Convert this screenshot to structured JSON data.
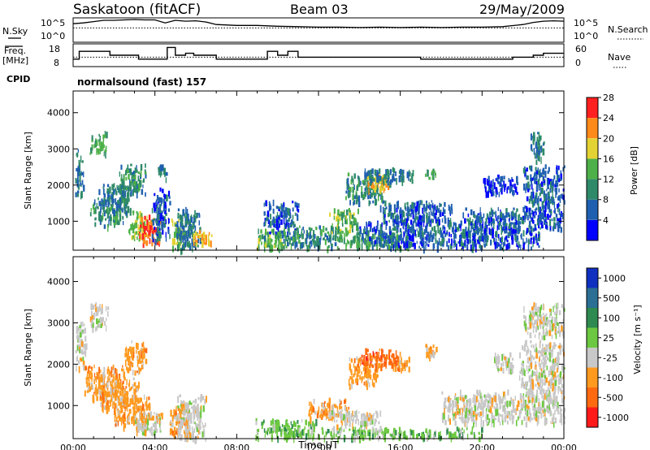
{
  "header": {
    "station": "Saskatoon (fitACF)",
    "beam": "Beam 03",
    "date": "29/May/2009",
    "program": "normalsound (fast) 157"
  },
  "left_labels": {
    "nsky": "N.Sky",
    "freq_line1": "Freq.",
    "freq_line2": "[MHz]",
    "cpid": "CPID"
  },
  "right_labels": {
    "nsearch": "N.Search",
    "nave": "Nave"
  },
  "panel_ticks": {
    "nsky_left": [
      "10^5",
      "10^0"
    ],
    "nsky_right": [
      "10^5",
      "10^0"
    ],
    "freq_left": [
      "18",
      "8"
    ],
    "freq_right": [
      "60",
      "0"
    ]
  },
  "chart_data": [
    {
      "type": "line",
      "name": "noise-panel",
      "x": [
        0,
        0.5,
        1,
        1.5,
        2,
        2.5,
        3,
        3.5,
        4,
        4.5,
        5,
        5.5,
        6,
        6.5,
        7,
        8,
        9,
        10,
        11,
        12,
        13,
        14,
        15,
        16,
        17,
        18,
        19,
        20,
        21,
        22,
        22.5,
        23,
        23.5,
        24
      ],
      "series": [
        {
          "name": "N.Sky",
          "values": [
            4,
            4.2,
            4.5,
            4.8,
            4.8,
            4.9,
            5,
            4.9,
            4.9,
            4.2,
            4.8,
            4.6,
            4.7,
            4.4,
            3.8,
            3.6,
            3.6,
            3.4,
            3.3,
            3.2,
            3.2,
            3.1,
            3.2,
            3.1,
            3.2,
            3.1,
            3.2,
            3.2,
            3.3,
            3.8,
            4.3,
            4.6,
            4.7,
            4.6
          ]
        },
        {
          "name": "N.Search",
          "values": [
            3,
            3,
            3,
            3,
            3,
            3,
            3,
            3,
            3,
            3,
            3,
            3,
            3,
            3,
            3,
            3,
            3,
            3,
            3,
            3,
            3,
            3,
            3,
            3,
            3,
            3,
            3,
            3,
            3,
            3,
            3,
            3,
            3,
            3
          ]
        }
      ],
      "ylim": [
        0,
        5
      ]
    },
    {
      "type": "line",
      "name": "frequency-panel",
      "x": [
        0,
        0.3,
        1,
        1.8,
        2.5,
        3.2,
        4.5,
        4.6,
        5,
        5.5,
        5.9,
        6.3,
        7,
        8,
        9,
        9.5,
        10,
        10.5,
        11,
        12,
        13,
        14,
        15,
        16,
        17,
        17.5,
        18,
        19,
        20,
        21,
        21.5,
        22,
        22.5,
        23,
        24
      ],
      "series": [
        {
          "name": "Freq.",
          "values": [
            11,
            15,
            15,
            13,
            13,
            11,
            11,
            17,
            13,
            14,
            13,
            13,
            11,
            11,
            11,
            15,
            13,
            15,
            12,
            12,
            12,
            12,
            12,
            12,
            11,
            11,
            11,
            11,
            11,
            11,
            12,
            12,
            13,
            14,
            14
          ]
        },
        {
          "name": "Nave",
          "values": [
            24,
            24,
            24,
            24,
            24,
            24,
            24,
            24,
            24,
            24,
            24,
            24,
            24,
            24,
            24,
            24,
            24,
            24,
            24,
            24,
            24,
            24,
            24,
            24,
            24,
            24,
            24,
            24,
            24,
            24,
            24,
            24,
            24,
            24,
            24
          ]
        }
      ],
      "ylim": [
        8,
        18
      ]
    },
    {
      "type": "heatmap",
      "name": "power-panel",
      "xlabel": "",
      "ylabel": "Slant Range [km]",
      "colorbar_label": "Power [dB]",
      "colorbar_ticks": [
        4,
        8,
        12,
        16,
        20,
        24,
        28
      ],
      "colorbar_colors": [
        "#0000ff",
        "#1f5fb0",
        "#2e8a68",
        "#4db048",
        "#e3d233",
        "#ff8a1a",
        "#ff2020"
      ],
      "x_ticks": [
        "00:00",
        "04:00",
        "08:00",
        "12:00",
        "16:00",
        "20:00",
        "00:00"
      ],
      "y_ticks": [
        1000,
        2000,
        3000,
        4000
      ],
      "ylim": [
        200,
        4600
      ],
      "xlim": [
        0,
        24
      ],
      "patches": [
        {
          "t0": 0.1,
          "t1": 0.5,
          "r0": 1700,
          "r1": 3000,
          "v": 10
        },
        {
          "t0": 0.8,
          "t1": 1.6,
          "r0": 2900,
          "r1": 3500,
          "v": 14
        },
        {
          "t0": 0.8,
          "t1": 2.5,
          "r0": 900,
          "r1": 1700,
          "v": 12
        },
        {
          "t0": 1.2,
          "t1": 2.8,
          "r0": 1200,
          "r1": 2100,
          "v": 10
        },
        {
          "t0": 2.2,
          "t1": 3.6,
          "r0": 1800,
          "r1": 2600,
          "v": 12
        },
        {
          "t0": 2.7,
          "t1": 3.7,
          "r0": 500,
          "r1": 1300,
          "v": 18
        },
        {
          "t0": 3.2,
          "t1": 4.3,
          "r0": 400,
          "r1": 1200,
          "v": 26
        },
        {
          "t0": 3.8,
          "t1": 4.7,
          "r0": 500,
          "r1": 2000,
          "v": 8
        },
        {
          "t0": 4.0,
          "t1": 4.6,
          "r0": 2200,
          "r1": 2600,
          "v": 10
        },
        {
          "t0": 4.8,
          "t1": 5.6,
          "r0": 300,
          "r1": 1100,
          "v": 18
        },
        {
          "t0": 5.0,
          "t1": 6.2,
          "r0": 200,
          "r1": 1400,
          "v": 10
        },
        {
          "t0": 5.7,
          "t1": 6.8,
          "r0": 400,
          "r1": 800,
          "v": 22
        },
        {
          "t0": 8.9,
          "t1": 10.5,
          "r0": 250,
          "r1": 800,
          "v": 16
        },
        {
          "t0": 9.2,
          "t1": 11.0,
          "r0": 600,
          "r1": 1600,
          "v": 8
        },
        {
          "t0": 10.2,
          "t1": 13.0,
          "r0": 300,
          "r1": 900,
          "v": 12
        },
        {
          "t0": 12.5,
          "t1": 14.0,
          "r0": 700,
          "r1": 1400,
          "v": 16
        },
        {
          "t0": 13.0,
          "t1": 16.5,
          "r0": 300,
          "r1": 700,
          "v": 14
        },
        {
          "t0": 13.3,
          "t1": 15.2,
          "r0": 1500,
          "r1": 2350,
          "v": 12
        },
        {
          "t0": 14.2,
          "t1": 15.6,
          "r0": 1900,
          "r1": 2300,
          "v": 22
        },
        {
          "t0": 14.0,
          "t1": 16.6,
          "r0": 2100,
          "r1": 2500,
          "v": 10
        },
        {
          "t0": 15.0,
          "t1": 18.5,
          "r0": 1000,
          "r1": 1600,
          "v": 8
        },
        {
          "t0": 14.0,
          "t1": 20.0,
          "r0": 300,
          "r1": 1100,
          "v": 8
        },
        {
          "t0": 17.2,
          "t1": 17.8,
          "r0": 2200,
          "r1": 2500,
          "v": 14
        },
        {
          "t0": 19.0,
          "t1": 22.8,
          "r0": 300,
          "r1": 1400,
          "v": 8
        },
        {
          "t0": 20.0,
          "t1": 21.8,
          "r0": 1800,
          "r1": 2300,
          "v": 6
        },
        {
          "t0": 22.0,
          "t1": 24.0,
          "r0": 800,
          "r1": 2600,
          "v": 8
        },
        {
          "t0": 22.3,
          "t1": 23.0,
          "r0": 2700,
          "r1": 3500,
          "v": 10
        }
      ]
    },
    {
      "type": "heatmap",
      "name": "velocity-panel",
      "xlabel": "Time UT",
      "ylabel": "Slant Range [km]",
      "colorbar_label": "Velocity [m s⁻¹]",
      "colorbar_ticks": [
        "1000",
        "500",
        "100",
        "25",
        "-25",
        "-100",
        "-500",
        "-1000"
      ],
      "colorbar_colors": [
        "#1030c0",
        "#2c6f94",
        "#2e8a50",
        "#6cc840",
        "#c8c8c8",
        "#ff9a1f",
        "#ff6a10",
        "#ff1a1a"
      ],
      "x_ticks": [
        "00:00",
        "04:00",
        "08:00",
        "12:00",
        "16:00",
        "20:00",
        "00:00"
      ],
      "y_ticks": [
        1000,
        2000,
        3000,
        4000
      ],
      "ylim": [
        200,
        4600
      ],
      "xlim": [
        0,
        24
      ],
      "patches": [
        {
          "t0": 0.1,
          "t1": 0.6,
          "r0": 1900,
          "r1": 3100,
          "v": 4
        },
        {
          "t0": 0.8,
          "t1": 1.7,
          "r0": 2900,
          "r1": 3500,
          "v": 4
        },
        {
          "t0": 0.4,
          "t1": 2.5,
          "r0": 1200,
          "r1": 2000,
          "v": 5
        },
        {
          "t0": 1.2,
          "t1": 3.2,
          "r0": 900,
          "r1": 1700,
          "v": 5
        },
        {
          "t0": 2.0,
          "t1": 3.8,
          "r0": 500,
          "r1": 1300,
          "v": 5
        },
        {
          "t0": 3.0,
          "t1": 4.4,
          "r0": 300,
          "r1": 900,
          "v": 4
        },
        {
          "t0": 2.5,
          "t1": 3.6,
          "r0": 1800,
          "r1": 2600,
          "v": 5
        },
        {
          "t0": 4.7,
          "t1": 5.6,
          "r0": 300,
          "r1": 1100,
          "v": 5
        },
        {
          "t0": 5.0,
          "t1": 6.5,
          "r0": 200,
          "r1": 1300,
          "v": 4
        },
        {
          "t0": 8.9,
          "t1": 12.0,
          "r0": 250,
          "r1": 700,
          "v": 3
        },
        {
          "t0": 11.5,
          "t1": 13.5,
          "r0": 700,
          "r1": 1200,
          "v": 5
        },
        {
          "t0": 12.0,
          "t1": 20.0,
          "r0": 250,
          "r1": 500,
          "v": 3
        },
        {
          "t0": 12.5,
          "t1": 15.0,
          "r0": 500,
          "r1": 900,
          "v": 4
        },
        {
          "t0": 13.4,
          "t1": 15.0,
          "r0": 1500,
          "r1": 2200,
          "v": 5
        },
        {
          "t0": 14.0,
          "t1": 16.0,
          "r0": 1900,
          "r1": 2400,
          "v": 6
        },
        {
          "t0": 15.5,
          "t1": 16.4,
          "r0": 1900,
          "r1": 2200,
          "v": 5
        },
        {
          "t0": 17.2,
          "t1": 17.8,
          "r0": 2200,
          "r1": 2500,
          "v": 5
        },
        {
          "t0": 18.0,
          "t1": 22.0,
          "r0": 600,
          "r1": 1400,
          "v": 4
        },
        {
          "t0": 20.5,
          "t1": 21.5,
          "r0": 1900,
          "r1": 2300,
          "v": 4
        },
        {
          "t0": 21.8,
          "t1": 24.0,
          "r0": 600,
          "r1": 2600,
          "v": 4
        },
        {
          "t0": 22.0,
          "t1": 24.0,
          "r0": 2700,
          "r1": 3500,
          "v": 4
        }
      ]
    }
  ]
}
